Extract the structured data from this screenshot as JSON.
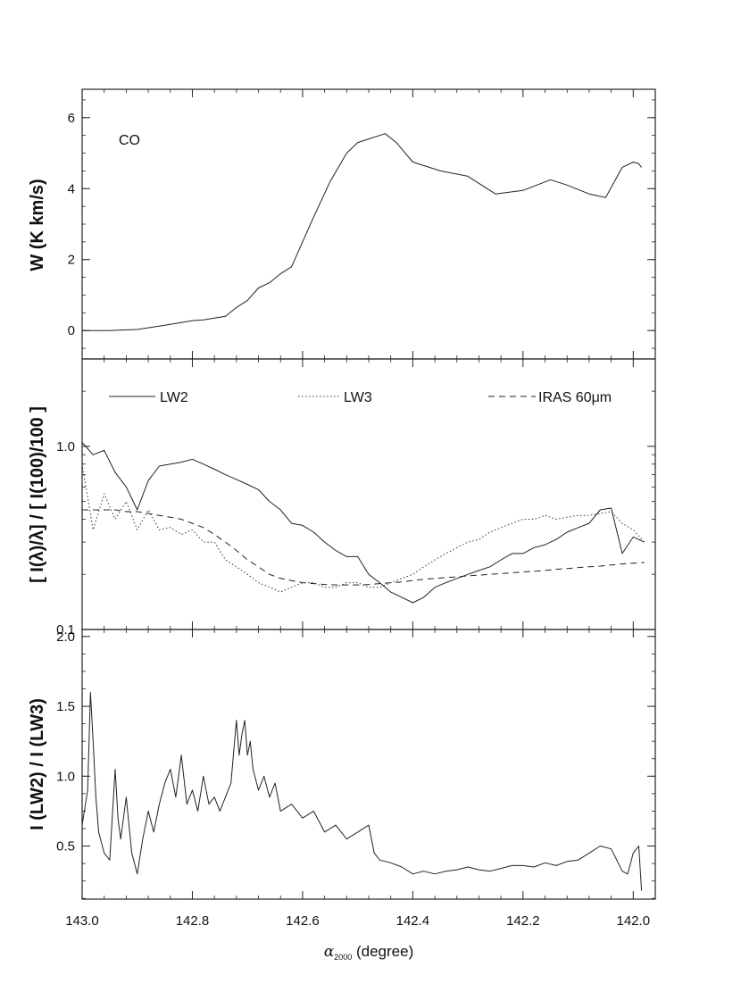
{
  "chart_data": [
    {
      "type": "line",
      "panel": "top",
      "annotation": "CO",
      "ylabel": "W (K km/s)",
      "ylim": [
        -0.8,
        6.8
      ],
      "yticks": [
        0,
        2,
        4,
        6
      ],
      "xlim": [
        143.0,
        141.96
      ],
      "xlabel_parts": [
        "α",
        "2000",
        " (degree)"
      ],
      "x": [
        143.0,
        142.95,
        142.9,
        142.85,
        142.8,
        142.78,
        142.76,
        142.74,
        142.72,
        142.7,
        142.68,
        142.66,
        142.64,
        142.62,
        142.6,
        142.58,
        142.55,
        142.52,
        142.5,
        142.48,
        142.45,
        142.43,
        142.4,
        142.35,
        142.3,
        142.27,
        142.25,
        142.2,
        142.15,
        142.12,
        142.08,
        142.05,
        142.02,
        142.0,
        141.99,
        141.985
      ],
      "series": [
        {
          "style": "solid",
          "values": [
            0.0,
            0.0,
            0.03,
            0.15,
            0.28,
            0.3,
            0.35,
            0.4,
            0.65,
            0.85,
            1.2,
            1.35,
            1.6,
            1.8,
            2.5,
            3.2,
            4.2,
            5.0,
            5.3,
            5.4,
            5.55,
            5.3,
            4.75,
            4.5,
            4.35,
            4.05,
            3.85,
            3.95,
            4.25,
            4.1,
            3.85,
            3.75,
            4.6,
            4.75,
            4.7,
            4.6
          ]
        }
      ]
    },
    {
      "type": "line",
      "panel": "middle",
      "ylabel": "[ I(λ)/λ] / [ I(100)/100 ]",
      "yscale": "log",
      "ylim": [
        0.1,
        3.0
      ],
      "yticks": [
        0.1,
        1.0
      ],
      "ytick_labels": [
        "0.1",
        "1.0"
      ],
      "xlim": [
        143.0,
        141.96
      ],
      "legend": [
        "LW2",
        "LW3",
        "IRAS 60μm"
      ],
      "x": [
        143.0,
        142.98,
        142.96,
        142.94,
        142.92,
        142.9,
        142.88,
        142.86,
        142.84,
        142.82,
        142.8,
        142.78,
        142.76,
        142.74,
        142.72,
        142.7,
        142.68,
        142.66,
        142.64,
        142.62,
        142.6,
        142.58,
        142.56,
        142.54,
        142.52,
        142.5,
        142.48,
        142.46,
        142.44,
        142.42,
        142.4,
        142.38,
        142.36,
        142.34,
        142.32,
        142.3,
        142.28,
        142.26,
        142.24,
        142.22,
        142.2,
        142.18,
        142.16,
        142.14,
        142.12,
        142.1,
        142.08,
        142.06,
        142.04,
        142.02,
        142.0,
        141.98
      ],
      "series": [
        {
          "name": "LW2",
          "style": "solid",
          "values": [
            1.05,
            0.9,
            0.95,
            0.72,
            0.6,
            0.45,
            0.65,
            0.78,
            0.8,
            0.82,
            0.85,
            0.8,
            0.75,
            0.7,
            0.66,
            0.62,
            0.58,
            0.5,
            0.45,
            0.38,
            0.37,
            0.34,
            0.3,
            0.27,
            0.25,
            0.25,
            0.2,
            0.18,
            0.16,
            0.15,
            0.14,
            0.15,
            0.17,
            0.18,
            0.19,
            0.2,
            0.21,
            0.22,
            0.24,
            0.26,
            0.26,
            0.28,
            0.29,
            0.31,
            0.34,
            0.36,
            0.38,
            0.45,
            0.46,
            0.26,
            0.32,
            0.3
          ]
        },
        {
          "name": "LW3",
          "style": "dotted",
          "values": [
            0.8,
            0.35,
            0.55,
            0.4,
            0.5,
            0.35,
            0.45,
            0.35,
            0.36,
            0.33,
            0.35,
            0.3,
            0.3,
            0.24,
            0.22,
            0.2,
            0.18,
            0.17,
            0.16,
            0.17,
            0.18,
            0.18,
            0.17,
            0.17,
            0.18,
            0.18,
            0.17,
            0.17,
            0.18,
            0.19,
            0.2,
            0.22,
            0.24,
            0.26,
            0.28,
            0.3,
            0.31,
            0.34,
            0.36,
            0.38,
            0.4,
            0.4,
            0.42,
            0.4,
            0.41,
            0.42,
            0.42,
            0.43,
            0.44,
            0.38,
            0.35,
            0.3
          ]
        },
        {
          "name": "IRAS 60μm",
          "style": "dashed",
          "values": [
            0.45,
            0.45,
            0.45,
            0.45,
            0.44,
            0.44,
            0.43,
            0.42,
            0.41,
            0.4,
            0.38,
            0.36,
            0.33,
            0.3,
            0.27,
            0.24,
            0.22,
            0.2,
            0.19,
            0.185,
            0.18,
            0.178,
            0.176,
            0.175,
            0.175,
            0.175,
            0.176,
            0.178,
            0.18,
            0.182,
            0.185,
            0.188,
            0.19,
            0.192,
            0.194,
            0.196,
            0.198,
            0.2,
            0.202,
            0.204,
            0.206,
            0.208,
            0.21,
            0.213,
            0.215,
            0.218,
            0.22,
            0.222,
            0.225,
            0.228,
            0.23,
            0.232
          ]
        }
      ]
    },
    {
      "type": "line",
      "panel": "bottom",
      "ylabel": "I (LW2) / I (LW3)",
      "ylim": [
        0.12,
        2.05
      ],
      "yticks": [
        0.5,
        1.0,
        1.5,
        2.0
      ],
      "ytick_labels": [
        "0.5",
        "1.0",
        "1.5",
        "2.0"
      ],
      "xlim": [
        143.0,
        141.96
      ],
      "xticks": [
        143.0,
        142.8,
        142.6,
        142.4,
        142.2,
        142.0
      ],
      "xtick_labels": [
        "143.0",
        "142.8",
        "142.6",
        "142.4",
        "142.2",
        "142.0"
      ],
      "x": [
        143.0,
        142.99,
        142.985,
        142.98,
        142.975,
        142.97,
        142.96,
        142.95,
        142.94,
        142.935,
        142.93,
        142.92,
        142.91,
        142.9,
        142.89,
        142.88,
        142.87,
        142.86,
        142.85,
        142.84,
        142.83,
        142.82,
        142.81,
        142.8,
        142.79,
        142.78,
        142.77,
        142.76,
        142.75,
        142.74,
        142.73,
        142.72,
        142.715,
        142.71,
        142.705,
        142.7,
        142.695,
        142.69,
        142.68,
        142.67,
        142.66,
        142.65,
        142.64,
        142.62,
        142.6,
        142.58,
        142.56,
        142.54,
        142.52,
        142.5,
        142.48,
        142.47,
        142.46,
        142.44,
        142.42,
        142.4,
        142.38,
        142.36,
        142.34,
        142.32,
        142.3,
        142.28,
        142.26,
        142.24,
        142.22,
        142.2,
        142.18,
        142.16,
        142.14,
        142.12,
        142.1,
        142.08,
        142.06,
        142.04,
        142.03,
        142.02,
        142.01,
        142.0,
        141.99,
        141.985
      ],
      "series": [
        {
          "style": "solid",
          "values": [
            0.65,
            0.9,
            1.6,
            1.25,
            0.85,
            0.6,
            0.45,
            0.4,
            1.05,
            0.7,
            0.55,
            0.85,
            0.45,
            0.3,
            0.55,
            0.75,
            0.6,
            0.8,
            0.95,
            1.05,
            0.85,
            1.15,
            0.8,
            0.9,
            0.75,
            1.0,
            0.8,
            0.85,
            0.75,
            0.85,
            0.95,
            1.4,
            1.15,
            1.3,
            1.4,
            1.15,
            1.25,
            1.05,
            0.9,
            1.0,
            0.85,
            0.95,
            0.75,
            0.8,
            0.7,
            0.75,
            0.6,
            0.65,
            0.55,
            0.6,
            0.65,
            0.45,
            0.4,
            0.38,
            0.35,
            0.3,
            0.32,
            0.3,
            0.32,
            0.33,
            0.35,
            0.33,
            0.32,
            0.34,
            0.36,
            0.36,
            0.35,
            0.38,
            0.36,
            0.39,
            0.4,
            0.45,
            0.5,
            0.48,
            0.4,
            0.32,
            0.3,
            0.45,
            0.5,
            0.18
          ]
        }
      ]
    }
  ]
}
